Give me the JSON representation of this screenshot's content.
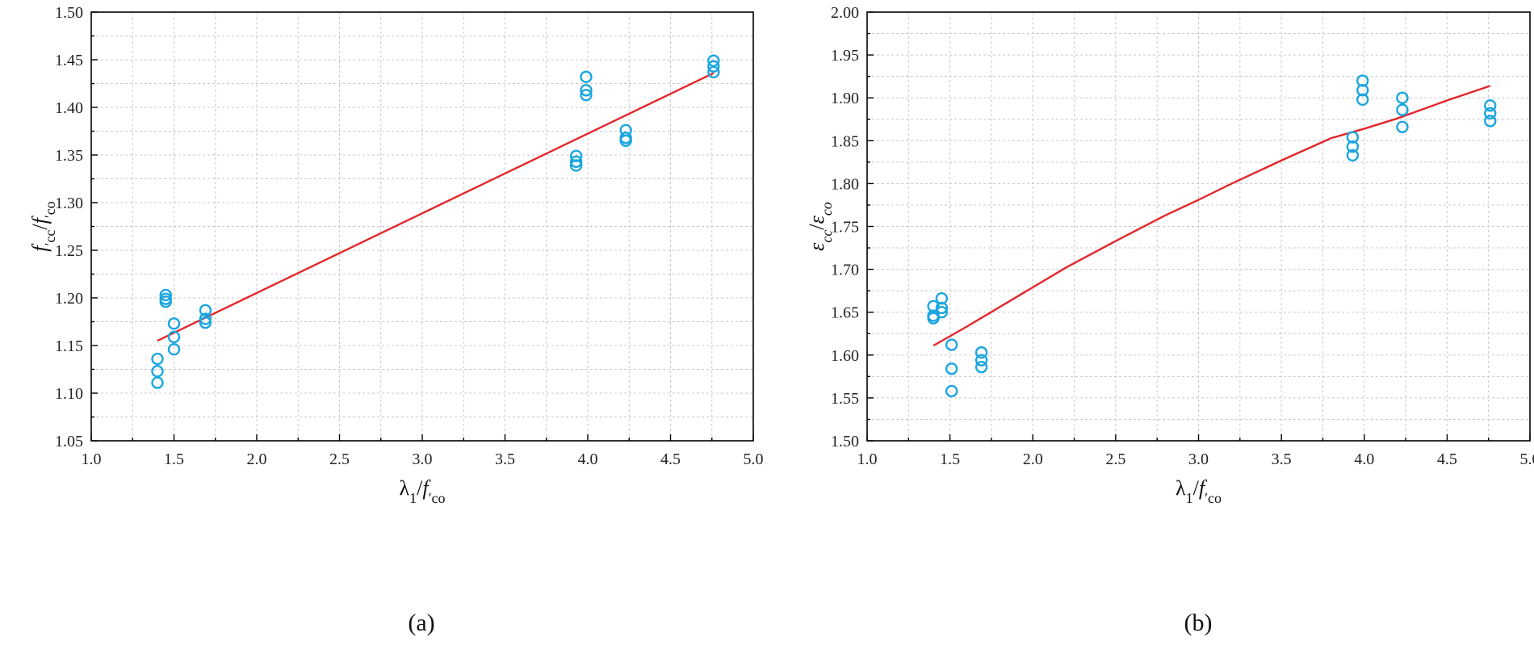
{
  "chart_data": [
    {
      "panel_label": "(a)",
      "type": "scatter",
      "x_label_parts": [
        "λ",
        "1",
        "/",
        "f",
        "′",
        "co"
      ],
      "y_label_parts": [
        "f",
        "′",
        "cc",
        "/",
        "f",
        "′",
        "co"
      ],
      "xlim": [
        1.0,
        5.0
      ],
      "ylim": [
        1.05,
        1.5
      ],
      "x_ticks": [
        "1.0",
        "1.5",
        "2.0",
        "2.5",
        "3.0",
        "3.5",
        "4.0",
        "4.5",
        "5.0"
      ],
      "y_ticks": [
        "1.05",
        "1.10",
        "1.15",
        "1.20",
        "1.25",
        "1.30",
        "1.35",
        "1.40",
        "1.45",
        "1.50"
      ],
      "grid": true,
      "point_color": "#1aa6e0",
      "line_color": "#e3262a",
      "points": [
        {
          "x": 1.4,
          "y": 1.111
        },
        {
          "x": 1.4,
          "y": 1.123
        },
        {
          "x": 1.4,
          "y": 1.136
        },
        {
          "x": 1.45,
          "y": 1.196
        },
        {
          "x": 1.45,
          "y": 1.199
        },
        {
          "x": 1.45,
          "y": 1.203
        },
        {
          "x": 1.5,
          "y": 1.146
        },
        {
          "x": 1.5,
          "y": 1.159
        },
        {
          "x": 1.5,
          "y": 1.173
        },
        {
          "x": 1.69,
          "y": 1.174
        },
        {
          "x": 1.69,
          "y": 1.178
        },
        {
          "x": 1.69,
          "y": 1.187
        },
        {
          "x": 3.93,
          "y": 1.339
        },
        {
          "x": 3.93,
          "y": 1.343
        },
        {
          "x": 3.93,
          "y": 1.349
        },
        {
          "x": 3.99,
          "y": 1.413
        },
        {
          "x": 3.99,
          "y": 1.418
        },
        {
          "x": 3.99,
          "y": 1.432
        },
        {
          "x": 4.23,
          "y": 1.365
        },
        {
          "x": 4.23,
          "y": 1.368
        },
        {
          "x": 4.23,
          "y": 1.376
        },
        {
          "x": 4.76,
          "y": 1.437
        },
        {
          "x": 4.76,
          "y": 1.443
        },
        {
          "x": 4.76,
          "y": 1.449
        }
      ],
      "fit_line": {
        "x": [
          1.4,
          4.76
        ],
        "y": [
          1.155,
          1.436
        ]
      }
    },
    {
      "panel_label": "(b)",
      "type": "scatter",
      "x_label_parts": [
        "λ",
        "1",
        "/",
        "f",
        "′",
        "co"
      ],
      "y_label_parts": [
        "ε",
        "cc",
        "/",
        "ε",
        "co"
      ],
      "xlim": [
        1.0,
        5.0
      ],
      "ylim": [
        1.5,
        2.0
      ],
      "x_ticks": [
        "1.0",
        "1.5",
        "2.0",
        "2.5",
        "3.0",
        "3.5",
        "4.0",
        "4.5",
        "5.0"
      ],
      "y_ticks": [
        "1.50",
        "1.55",
        "1.60",
        "1.65",
        "1.70",
        "1.75",
        "1.80",
        "1.85",
        "1.90",
        "1.95",
        "2.00"
      ],
      "grid": true,
      "point_color": "#1aa6e0",
      "line_color": "#e3262a",
      "points": [
        {
          "x": 1.4,
          "y": 1.643
        },
        {
          "x": 1.4,
          "y": 1.646
        },
        {
          "x": 1.4,
          "y": 1.657
        },
        {
          "x": 1.45,
          "y": 1.65
        },
        {
          "x": 1.45,
          "y": 1.655
        },
        {
          "x": 1.45,
          "y": 1.666
        },
        {
          "x": 1.51,
          "y": 1.558
        },
        {
          "x": 1.51,
          "y": 1.584
        },
        {
          "x": 1.51,
          "y": 1.612
        },
        {
          "x": 1.69,
          "y": 1.586
        },
        {
          "x": 1.69,
          "y": 1.594
        },
        {
          "x": 1.69,
          "y": 1.603
        },
        {
          "x": 3.93,
          "y": 1.833
        },
        {
          "x": 3.93,
          "y": 1.843
        },
        {
          "x": 3.93,
          "y": 1.854
        },
        {
          "x": 3.99,
          "y": 1.898
        },
        {
          "x": 3.99,
          "y": 1.909
        },
        {
          "x": 3.99,
          "y": 1.92
        },
        {
          "x": 4.23,
          "y": 1.866
        },
        {
          "x": 4.23,
          "y": 1.886
        },
        {
          "x": 4.23,
          "y": 1.9
        },
        {
          "x": 4.76,
          "y": 1.873
        },
        {
          "x": 4.76,
          "y": 1.882
        },
        {
          "x": 4.76,
          "y": 1.891
        }
      ],
      "fit_curve": {
        "x": [
          1.4,
          1.6,
          1.8,
          2.0,
          2.2,
          2.5,
          2.8,
          3.0,
          3.2,
          3.5,
          3.8,
          4.0,
          4.2,
          4.5,
          4.76
        ],
        "y": [
          1.611,
          1.633,
          1.656,
          1.679,
          1.702,
          1.733,
          1.763,
          1.781,
          1.8,
          1.827,
          1.853,
          1.864,
          1.876,
          1.897,
          1.914
        ]
      }
    }
  ]
}
